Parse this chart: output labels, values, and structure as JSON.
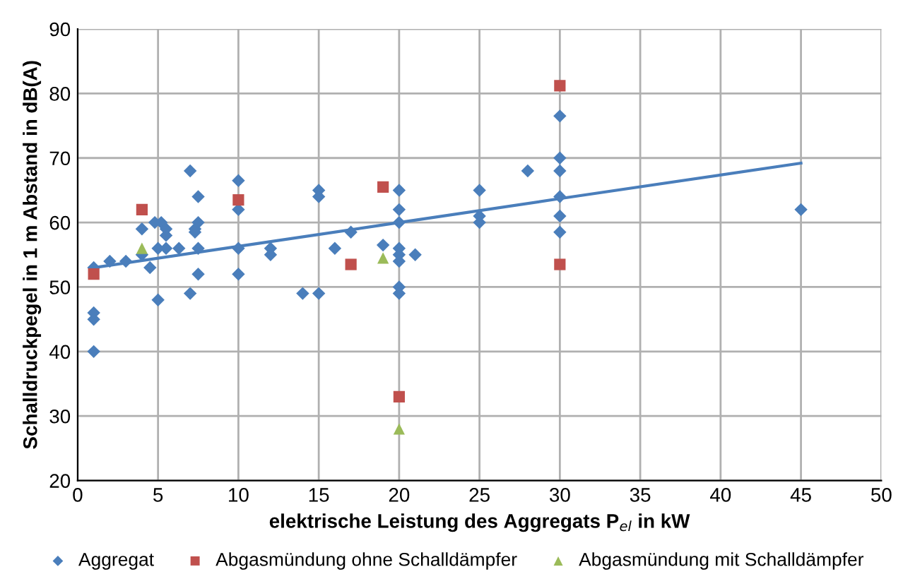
{
  "chart_data": {
    "type": "scatter",
    "xlabel": "elektrische Leistung des Aggregats P$_{el}$ in kW",
    "ylabel": "Schalldruckpegel in 1 m Abstand in dB(A)",
    "xlim": [
      0,
      50
    ],
    "xticks": [
      0,
      5,
      10,
      15,
      20,
      25,
      30,
      35,
      40,
      45,
      50
    ],
    "ylim": [
      20,
      90
    ],
    "yticks": [
      20,
      30,
      40,
      50,
      60,
      70,
      80,
      90
    ],
    "grid": true,
    "legend": "bottom",
    "series": [
      {
        "name": "Aggregat",
        "color": "#4a7ebb",
        "marker": "diamond",
        "x": [
          1,
          1,
          1,
          1,
          2,
          3,
          4,
          4,
          4.5,
          4.8,
          5.2,
          5,
          5,
          5.5,
          5.5,
          5.5,
          6.3,
          7,
          7,
          7.3,
          7.3,
          7.5,
          7.5,
          7.5,
          7.5,
          10,
          10,
          10,
          10,
          12,
          12,
          14,
          15,
          15,
          15,
          16,
          17,
          19,
          20,
          20,
          20,
          20,
          20,
          20,
          20,
          20,
          21,
          25,
          25,
          25,
          28,
          30,
          30,
          30,
          30,
          30,
          30,
          45
        ],
        "values": [
          40,
          45,
          46,
          53,
          54,
          54,
          55,
          59,
          53,
          60,
          60,
          56,
          48,
          58,
          59,
          56,
          56,
          68,
          49,
          58.5,
          59,
          64,
          60,
          56,
          52,
          66.5,
          62,
          56,
          52,
          56,
          55,
          49,
          65,
          64,
          49,
          56,
          58.5,
          56.5,
          65,
          62,
          60,
          56,
          55,
          54,
          50,
          49,
          55,
          65,
          61,
          60,
          68,
          76.5,
          70,
          68,
          64,
          61,
          58.5,
          62
        ]
      },
      {
        "name": "Abgasmündung ohne Schalldämpfer",
        "color": "#c0504d",
        "marker": "square",
        "x": [
          1,
          4,
          10,
          17,
          19,
          20,
          30,
          30
        ],
        "values": [
          52,
          62,
          63.5,
          53.5,
          65.5,
          33,
          81.2,
          53.5
        ]
      },
      {
        "name": "Abgasmündung mit Schalldämpfer",
        "color": "#9bbb59",
        "marker": "triangle",
        "x": [
          4,
          19,
          20
        ],
        "values": [
          56,
          54.5,
          28
        ]
      },
      {
        "type": "line",
        "color": "#4a7ebb",
        "x": [
          1,
          10,
          20,
          30,
          45
        ],
        "values": [
          53,
          56.3,
          60,
          63.7,
          69.2
        ]
      }
    ]
  }
}
